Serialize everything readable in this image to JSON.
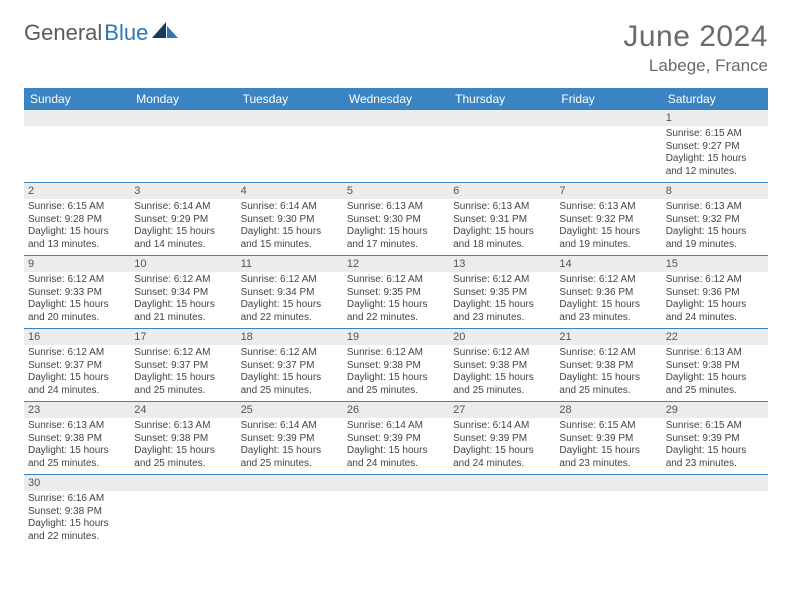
{
  "brand": {
    "part1": "General",
    "part2": "Blue"
  },
  "title": "June 2024",
  "location": "Labege, France",
  "colors": {
    "header_bg": "#3a84c4",
    "header_text": "#ffffff",
    "daynum_bg": "#ececec",
    "border": "#3a84c4",
    "title_color": "#6a6a6a",
    "brand_gray": "#5a5a5a",
    "brand_blue": "#2b77b8"
  },
  "weekdays": [
    "Sunday",
    "Monday",
    "Tuesday",
    "Wednesday",
    "Thursday",
    "Friday",
    "Saturday"
  ],
  "weeks": [
    [
      {
        "blank": true
      },
      {
        "blank": true
      },
      {
        "blank": true
      },
      {
        "blank": true
      },
      {
        "blank": true
      },
      {
        "blank": true
      },
      {
        "day": "1",
        "sunrise": "Sunrise: 6:15 AM",
        "sunset": "Sunset: 9:27 PM",
        "daylight": "Daylight: 15 hours and 12 minutes."
      }
    ],
    [
      {
        "day": "2",
        "sunrise": "Sunrise: 6:15 AM",
        "sunset": "Sunset: 9:28 PM",
        "daylight": "Daylight: 15 hours and 13 minutes."
      },
      {
        "day": "3",
        "sunrise": "Sunrise: 6:14 AM",
        "sunset": "Sunset: 9:29 PM",
        "daylight": "Daylight: 15 hours and 14 minutes."
      },
      {
        "day": "4",
        "sunrise": "Sunrise: 6:14 AM",
        "sunset": "Sunset: 9:30 PM",
        "daylight": "Daylight: 15 hours and 15 minutes."
      },
      {
        "day": "5",
        "sunrise": "Sunrise: 6:13 AM",
        "sunset": "Sunset: 9:30 PM",
        "daylight": "Daylight: 15 hours and 17 minutes."
      },
      {
        "day": "6",
        "sunrise": "Sunrise: 6:13 AM",
        "sunset": "Sunset: 9:31 PM",
        "daylight": "Daylight: 15 hours and 18 minutes."
      },
      {
        "day": "7",
        "sunrise": "Sunrise: 6:13 AM",
        "sunset": "Sunset: 9:32 PM",
        "daylight": "Daylight: 15 hours and 19 minutes."
      },
      {
        "day": "8",
        "sunrise": "Sunrise: 6:13 AM",
        "sunset": "Sunset: 9:32 PM",
        "daylight": "Daylight: 15 hours and 19 minutes."
      }
    ],
    [
      {
        "day": "9",
        "sunrise": "Sunrise: 6:12 AM",
        "sunset": "Sunset: 9:33 PM",
        "daylight": "Daylight: 15 hours and 20 minutes."
      },
      {
        "day": "10",
        "sunrise": "Sunrise: 6:12 AM",
        "sunset": "Sunset: 9:34 PM",
        "daylight": "Daylight: 15 hours and 21 minutes."
      },
      {
        "day": "11",
        "sunrise": "Sunrise: 6:12 AM",
        "sunset": "Sunset: 9:34 PM",
        "daylight": "Daylight: 15 hours and 22 minutes."
      },
      {
        "day": "12",
        "sunrise": "Sunrise: 6:12 AM",
        "sunset": "Sunset: 9:35 PM",
        "daylight": "Daylight: 15 hours and 22 minutes."
      },
      {
        "day": "13",
        "sunrise": "Sunrise: 6:12 AM",
        "sunset": "Sunset: 9:35 PM",
        "daylight": "Daylight: 15 hours and 23 minutes."
      },
      {
        "day": "14",
        "sunrise": "Sunrise: 6:12 AM",
        "sunset": "Sunset: 9:36 PM",
        "daylight": "Daylight: 15 hours and 23 minutes."
      },
      {
        "day": "15",
        "sunrise": "Sunrise: 6:12 AM",
        "sunset": "Sunset: 9:36 PM",
        "daylight": "Daylight: 15 hours and 24 minutes."
      }
    ],
    [
      {
        "day": "16",
        "sunrise": "Sunrise: 6:12 AM",
        "sunset": "Sunset: 9:37 PM",
        "daylight": "Daylight: 15 hours and 24 minutes."
      },
      {
        "day": "17",
        "sunrise": "Sunrise: 6:12 AM",
        "sunset": "Sunset: 9:37 PM",
        "daylight": "Daylight: 15 hours and 25 minutes."
      },
      {
        "day": "18",
        "sunrise": "Sunrise: 6:12 AM",
        "sunset": "Sunset: 9:37 PM",
        "daylight": "Daylight: 15 hours and 25 minutes."
      },
      {
        "day": "19",
        "sunrise": "Sunrise: 6:12 AM",
        "sunset": "Sunset: 9:38 PM",
        "daylight": "Daylight: 15 hours and 25 minutes."
      },
      {
        "day": "20",
        "sunrise": "Sunrise: 6:12 AM",
        "sunset": "Sunset: 9:38 PM",
        "daylight": "Daylight: 15 hours and 25 minutes."
      },
      {
        "day": "21",
        "sunrise": "Sunrise: 6:12 AM",
        "sunset": "Sunset: 9:38 PM",
        "daylight": "Daylight: 15 hours and 25 minutes."
      },
      {
        "day": "22",
        "sunrise": "Sunrise: 6:13 AM",
        "sunset": "Sunset: 9:38 PM",
        "daylight": "Daylight: 15 hours and 25 minutes."
      }
    ],
    [
      {
        "day": "23",
        "sunrise": "Sunrise: 6:13 AM",
        "sunset": "Sunset: 9:38 PM",
        "daylight": "Daylight: 15 hours and 25 minutes."
      },
      {
        "day": "24",
        "sunrise": "Sunrise: 6:13 AM",
        "sunset": "Sunset: 9:38 PM",
        "daylight": "Daylight: 15 hours and 25 minutes."
      },
      {
        "day": "25",
        "sunrise": "Sunrise: 6:14 AM",
        "sunset": "Sunset: 9:39 PM",
        "daylight": "Daylight: 15 hours and 25 minutes."
      },
      {
        "day": "26",
        "sunrise": "Sunrise: 6:14 AM",
        "sunset": "Sunset: 9:39 PM",
        "daylight": "Daylight: 15 hours and 24 minutes."
      },
      {
        "day": "27",
        "sunrise": "Sunrise: 6:14 AM",
        "sunset": "Sunset: 9:39 PM",
        "daylight": "Daylight: 15 hours and 24 minutes."
      },
      {
        "day": "28",
        "sunrise": "Sunrise: 6:15 AM",
        "sunset": "Sunset: 9:39 PM",
        "daylight": "Daylight: 15 hours and 23 minutes."
      },
      {
        "day": "29",
        "sunrise": "Sunrise: 6:15 AM",
        "sunset": "Sunset: 9:39 PM",
        "daylight": "Daylight: 15 hours and 23 minutes."
      }
    ],
    [
      {
        "day": "30",
        "sunrise": "Sunrise: 6:16 AM",
        "sunset": "Sunset: 9:38 PM",
        "daylight": "Daylight: 15 hours and 22 minutes."
      },
      {
        "blank": true
      },
      {
        "blank": true
      },
      {
        "blank": true
      },
      {
        "blank": true
      },
      {
        "blank": true
      },
      {
        "blank": true
      }
    ]
  ]
}
